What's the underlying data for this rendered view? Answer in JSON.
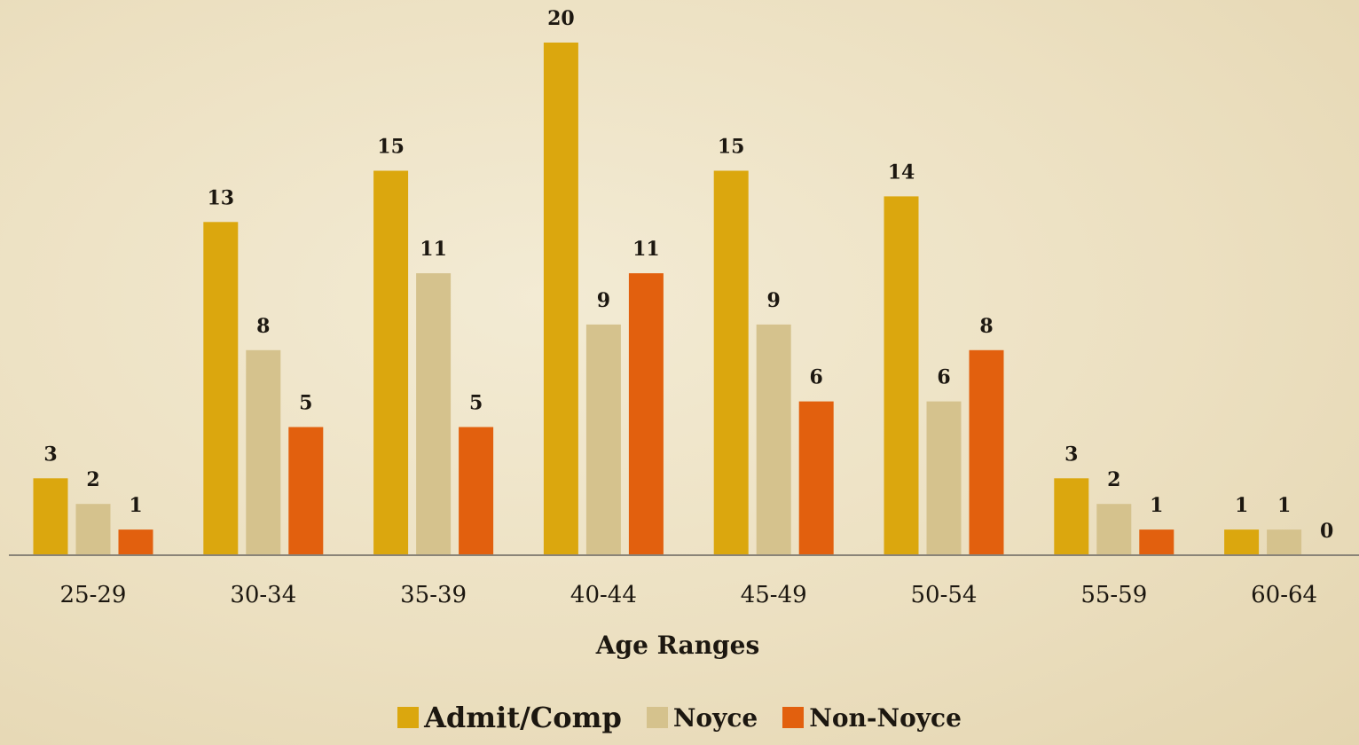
{
  "chart_data": {
    "type": "bar",
    "title": "",
    "xlabel": "Age Ranges",
    "ylabel": "",
    "categories": [
      "25-29",
      "30-34",
      "35-39",
      "40-44",
      "45-49",
      "50-54",
      "55-59",
      "60-64"
    ],
    "series": [
      {
        "name": "Admit/Comp",
        "values": [
          3,
          13,
          15,
          20,
          15,
          14,
          3,
          1
        ],
        "color": "#dba70e"
      },
      {
        "name": "Noyce",
        "values": [
          2,
          8,
          11,
          9,
          9,
          6,
          2,
          1
        ],
        "color": "#d5c28d"
      },
      {
        "name": "Non-Noyce",
        "values": [
          1,
          5,
          5,
          11,
          6,
          8,
          1,
          0
        ],
        "color": "#e2600e"
      }
    ],
    "ylim": [
      0,
      20
    ],
    "grid": false,
    "data_labels": true,
    "legend_position": "bottom"
  }
}
